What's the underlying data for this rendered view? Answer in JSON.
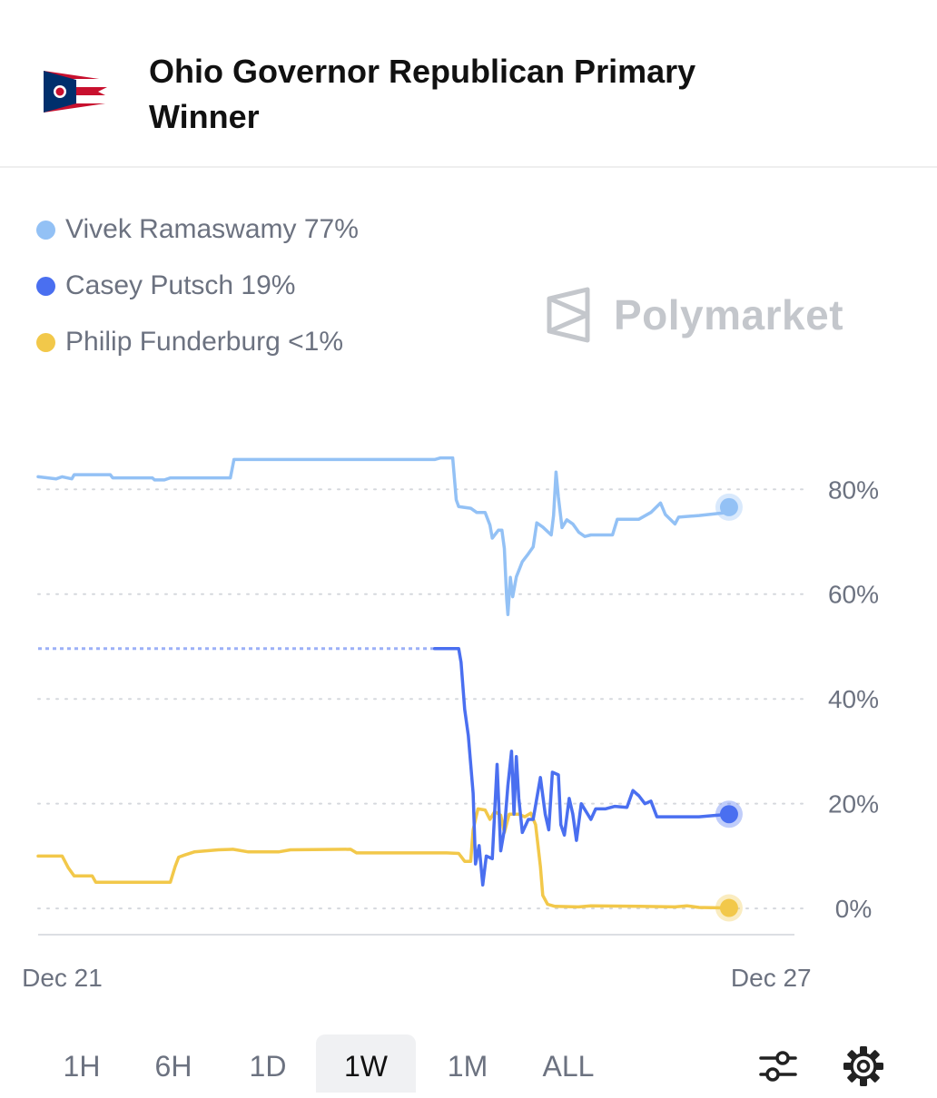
{
  "header": {
    "title": "Ohio Governor Republican Primary Winner"
  },
  "legend": [
    {
      "label": "Vivek Ramaswamy 77%",
      "color": "#93c1f5"
    },
    {
      "label": "Casey Putsch 19%",
      "color": "#4a6ff0"
    },
    {
      "label": "Philip Funderburg <1%",
      "color": "#f2c84a"
    }
  ],
  "watermark": {
    "text": "Polymarket",
    "icon": "polymarket-logo-icon"
  },
  "timeframes": [
    {
      "label": "1H",
      "active": false
    },
    {
      "label": "6H",
      "active": false
    },
    {
      "label": "1D",
      "active": false
    },
    {
      "label": "1W",
      "active": true
    },
    {
      "label": "1M",
      "active": false
    },
    {
      "label": "ALL",
      "active": false
    }
  ],
  "tools": [
    {
      "icon": "filter-sliders-icon"
    },
    {
      "icon": "gear-icon"
    }
  ],
  "chart_data": {
    "type": "line",
    "title": "",
    "xlabel": "",
    "ylabel": "",
    "xlim": [
      0,
      6.37
    ],
    "ylim": [
      -5,
      92
    ],
    "y_ticks": [
      {
        "value": 80,
        "label": "80%"
      },
      {
        "value": 60,
        "label": "60%"
      },
      {
        "value": 40,
        "label": "40%"
      },
      {
        "value": 20,
        "label": "20%"
      },
      {
        "value": 0,
        "label": "0%"
      }
    ],
    "x_ticks": [
      {
        "value": 0.2,
        "label": "Dec 21"
      },
      {
        "value": 6.1,
        "label": "Dec 27"
      }
    ],
    "grid": true,
    "legend_position": "top-left",
    "series": [
      {
        "name": "Vivek Ramaswamy",
        "color": "#93c1f5",
        "points": [
          [
            0.0,
            82.4
          ],
          [
            0.15,
            82.0
          ],
          [
            0.2,
            82.4
          ],
          [
            0.28,
            82.0
          ],
          [
            0.3,
            82.8
          ],
          [
            0.6,
            82.8
          ],
          [
            0.62,
            82.2
          ],
          [
            0.95,
            82.2
          ],
          [
            0.97,
            81.8
          ],
          [
            1.05,
            81.8
          ],
          [
            1.1,
            82.2
          ],
          [
            1.6,
            82.2
          ],
          [
            1.63,
            85.7
          ],
          [
            3.3,
            85.7
          ],
          [
            3.35,
            86.0
          ],
          [
            3.45,
            86.0
          ],
          [
            3.48,
            78.0
          ],
          [
            3.5,
            76.7
          ],
          [
            3.6,
            76.4
          ],
          [
            3.65,
            75.6
          ],
          [
            3.72,
            75.6
          ],
          [
            3.76,
            73.2
          ],
          [
            3.78,
            70.7
          ],
          [
            3.83,
            72.2
          ],
          [
            3.86,
            72.2
          ],
          [
            3.88,
            68.7
          ],
          [
            3.9,
            59.0
          ],
          [
            3.91,
            56.1
          ],
          [
            3.93,
            63.2
          ],
          [
            3.95,
            59.5
          ],
          [
            3.98,
            63.3
          ],
          [
            4.03,
            66.2
          ],
          [
            4.08,
            67.7
          ],
          [
            4.12,
            69.0
          ],
          [
            4.15,
            73.6
          ],
          [
            4.2,
            72.8
          ],
          [
            4.27,
            71.3
          ],
          [
            4.29,
            75.0
          ],
          [
            4.31,
            83.3
          ],
          [
            4.33,
            78.5
          ],
          [
            4.36,
            72.7
          ],
          [
            4.4,
            74.2
          ],
          [
            4.45,
            73.4
          ],
          [
            4.5,
            71.8
          ],
          [
            4.55,
            71.0
          ],
          [
            4.6,
            71.3
          ],
          [
            4.7,
            71.3
          ],
          [
            4.78,
            71.3
          ],
          [
            4.82,
            74.3
          ],
          [
            5.0,
            74.3
          ],
          [
            5.1,
            75.6
          ],
          [
            5.18,
            77.4
          ],
          [
            5.22,
            75.2
          ],
          [
            5.3,
            73.4
          ],
          [
            5.33,
            74.7
          ],
          [
            5.5,
            75.0
          ],
          [
            5.7,
            75.5
          ],
          [
            5.75,
            76.6
          ]
        ]
      },
      {
        "name": "Casey Putsch",
        "color": "#4a6ff0",
        "points": [
          [
            0.0,
            49.6
          ],
          [
            3.3,
            49.6
          ],
          [
            3.5,
            49.6
          ],
          [
            3.52,
            47.0
          ],
          [
            3.55,
            38.0
          ],
          [
            3.58,
            33.0
          ],
          [
            3.62,
            22.0
          ],
          [
            3.64,
            8.5
          ],
          [
            3.67,
            12.0
          ],
          [
            3.7,
            4.5
          ],
          [
            3.73,
            10.0
          ],
          [
            3.78,
            9.5
          ],
          [
            3.82,
            27.5
          ],
          [
            3.85,
            11.0
          ],
          [
            3.88,
            15.0
          ],
          [
            3.91,
            23.5
          ],
          [
            3.94,
            30.0
          ],
          [
            3.96,
            18.0
          ],
          [
            3.98,
            29.0
          ],
          [
            4.0,
            21.0
          ],
          [
            4.03,
            14.5
          ],
          [
            4.08,
            17.0
          ],
          [
            4.12,
            17.0
          ],
          [
            4.18,
            25.0
          ],
          [
            4.22,
            18.0
          ],
          [
            4.25,
            15.0
          ],
          [
            4.28,
            26.0
          ],
          [
            4.33,
            25.5
          ],
          [
            4.35,
            16.0
          ],
          [
            4.38,
            14.0
          ],
          [
            4.42,
            21.0
          ],
          [
            4.45,
            18.0
          ],
          [
            4.48,
            13.0
          ],
          [
            4.52,
            20.0
          ],
          [
            4.6,
            17.0
          ],
          [
            4.64,
            19.0
          ],
          [
            4.72,
            19.0
          ],
          [
            4.8,
            19.5
          ],
          [
            4.9,
            19.3
          ],
          [
            4.95,
            22.5
          ],
          [
            5.0,
            21.5
          ],
          [
            5.05,
            20.0
          ],
          [
            5.1,
            20.5
          ],
          [
            5.15,
            17.5
          ],
          [
            5.3,
            17.5
          ],
          [
            5.5,
            17.5
          ],
          [
            5.75,
            18.0
          ]
        ]
      },
      {
        "name": "Philip Funderburg",
        "color": "#f2c84a",
        "points": [
          [
            0.0,
            10.0
          ],
          [
            0.2,
            10.0
          ],
          [
            0.25,
            7.8
          ],
          [
            0.3,
            6.2
          ],
          [
            0.45,
            6.2
          ],
          [
            0.48,
            5.0
          ],
          [
            1.05,
            5.0
          ],
          [
            1.1,
            5.0
          ],
          [
            1.14,
            8.0
          ],
          [
            1.17,
            9.8
          ],
          [
            1.22,
            10.2
          ],
          [
            1.3,
            10.8
          ],
          [
            1.5,
            11.2
          ],
          [
            1.62,
            11.3
          ],
          [
            1.75,
            10.8
          ],
          [
            2.0,
            10.8
          ],
          [
            2.1,
            11.2
          ],
          [
            2.6,
            11.3
          ],
          [
            2.65,
            10.6
          ],
          [
            3.4,
            10.6
          ],
          [
            3.5,
            10.5
          ],
          [
            3.55,
            9.0
          ],
          [
            3.6,
            9.0
          ],
          [
            3.62,
            15.0
          ],
          [
            3.66,
            19.0
          ],
          [
            3.72,
            18.8
          ],
          [
            3.76,
            17.0
          ],
          [
            3.8,
            18.5
          ],
          [
            3.85,
            17.8
          ],
          [
            3.88,
            14.5
          ],
          [
            3.92,
            18.0
          ],
          [
            4.0,
            18.0
          ],
          [
            4.05,
            17.5
          ],
          [
            4.1,
            18.2
          ],
          [
            4.14,
            16.0
          ],
          [
            4.18,
            8.0
          ],
          [
            4.2,
            2.5
          ],
          [
            4.24,
            0.8
          ],
          [
            4.3,
            0.4
          ],
          [
            4.5,
            0.3
          ],
          [
            4.6,
            0.5
          ],
          [
            5.0,
            0.4
          ],
          [
            5.3,
            0.3
          ],
          [
            5.4,
            0.5
          ],
          [
            5.5,
            0.2
          ],
          [
            5.75,
            0.1
          ]
        ]
      }
    ],
    "dashed_segment": {
      "series": "Casey Putsch",
      "x": [
        0.0,
        3.3
      ],
      "y": 49.6
    }
  }
}
